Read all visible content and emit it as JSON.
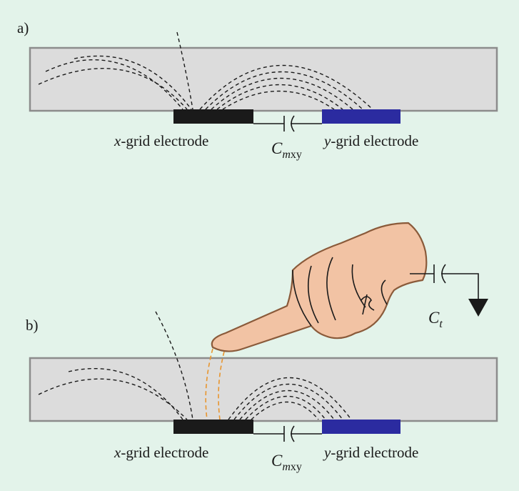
{
  "panels": {
    "a": {
      "tag": "a)"
    },
    "b": {
      "tag": "b)"
    }
  },
  "labels": {
    "x_electrode_var": "x",
    "x_electrode_rest": "-grid electrode",
    "y_electrode_var": "y",
    "y_electrode_rest": "-grid electrode",
    "cap_mutual_main": "C",
    "cap_mutual_m": "m",
    "cap_mutual_sub": "xy",
    "cap_touch_main": "C",
    "cap_touch_sub": "t"
  },
  "colors": {
    "background": "#e3f3ea",
    "glass_fill": "#dcdcdc",
    "glass_stroke": "#8c8c8c",
    "x_electrode": "#1a1a1a",
    "y_electrode": "#2b2ba0",
    "finger_skin": "#f2c3a4",
    "finger_outline": "#8a5a3a",
    "touch_field": "#e8952e"
  }
}
